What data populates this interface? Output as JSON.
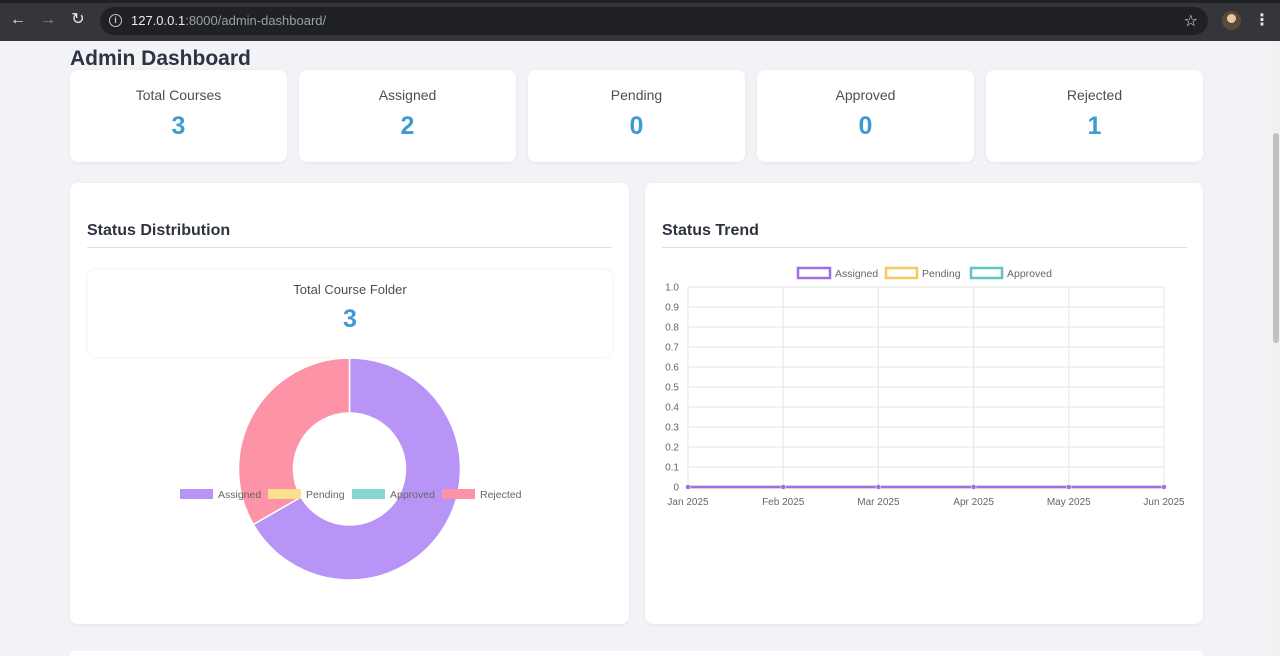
{
  "browser": {
    "url_host": "127.0.0.1",
    "url_path": ":8000/admin-dashboard/"
  },
  "page": {
    "title": "Admin Dashboard"
  },
  "stats": [
    {
      "label": "Total Courses",
      "value": "3"
    },
    {
      "label": "Assigned",
      "value": "2"
    },
    {
      "label": "Pending",
      "value": "0"
    },
    {
      "label": "Approved",
      "value": "0"
    },
    {
      "label": "Rejected",
      "value": "1"
    }
  ],
  "distribution": {
    "title": "Status Distribution",
    "total_label": "Total Course Folder",
    "total_value": "3"
  },
  "trend": {
    "title": "Status Trend"
  },
  "colors": {
    "accent": "#3d9bd1",
    "assigned": "#b794f6",
    "pending": "#fde08b",
    "approved": "#88d8d2",
    "rejected": "#fd93a6"
  },
  "chart_data": [
    {
      "type": "pie",
      "variant": "doughnut",
      "categories": [
        "Assigned",
        "Pending",
        "Approved",
        "Rejected"
      ],
      "values": [
        2,
        0,
        0,
        1
      ],
      "colors": [
        "#b794f6",
        "#fde08b",
        "#88d8d2",
        "#fd93a6"
      ],
      "legend": "bottom"
    },
    {
      "type": "line",
      "x": [
        "Jan 2025",
        "Feb 2025",
        "Mar 2025",
        "Apr 2025",
        "May 2025",
        "Jun 2025"
      ],
      "series": [
        {
          "name": "Assigned",
          "values": [
            0,
            0,
            0,
            0,
            0,
            0
          ],
          "color": "#a06fe0"
        },
        {
          "name": "Pending",
          "values": [
            0,
            0,
            0,
            0,
            0,
            0
          ],
          "color": "#f7c95a"
        },
        {
          "name": "Approved",
          "values": [
            0,
            0,
            0,
            0,
            0,
            0
          ],
          "color": "#5ec4c4"
        }
      ],
      "ylim": [
        0,
        1
      ],
      "yticks": [
        "1.0",
        "0.9",
        "0.8",
        "0.7",
        "0.6",
        "0.5",
        "0.4",
        "0.3",
        "0.2",
        "0.1",
        "0"
      ],
      "grid": true,
      "legend": "top"
    }
  ]
}
